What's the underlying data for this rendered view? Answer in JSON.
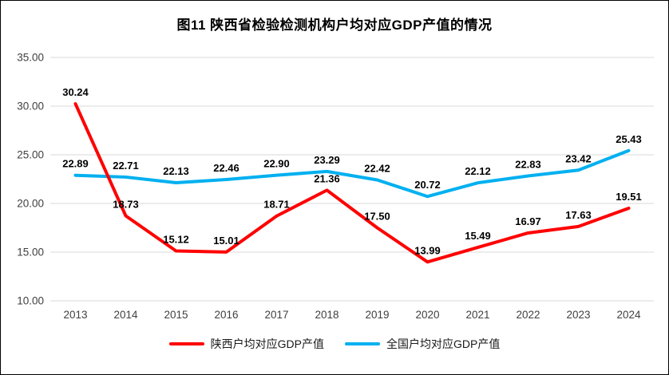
{
  "title": "图11  陕西省检验检测机构户均对应GDP产值的情况",
  "chart_data": {
    "type": "line",
    "title": "图11  陕西省检验检测机构户均对应GDP产值的情况",
    "categories": [
      "2013",
      "2014",
      "2015",
      "2016",
      "2017",
      "2018",
      "2019",
      "2020",
      "2021",
      "2022",
      "2023",
      "2024"
    ],
    "series": [
      {
        "name": "陕西户均对应GDP产值",
        "color": "#FF0000",
        "values": [
          30.24,
          18.73,
          15.12,
          15.01,
          18.71,
          21.36,
          17.5,
          13.99,
          15.49,
          16.97,
          17.63,
          19.51
        ]
      },
      {
        "name": "全国户均对应GDP产值",
        "color": "#00B0F0",
        "values": [
          22.89,
          22.71,
          22.13,
          22.46,
          22.9,
          23.29,
          22.42,
          20.72,
          22.12,
          22.83,
          23.42,
          25.43
        ]
      }
    ],
    "xlabel": "",
    "ylabel": "",
    "ylim": [
      10,
      35
    ],
    "yticks": [
      10,
      15,
      20,
      25,
      30,
      35
    ],
    "ytick_labels": [
      "10.00",
      "15.00",
      "20.00",
      "25.00",
      "30.00",
      "35.00"
    ],
    "grid": true,
    "legend_position": "bottom",
    "data_labels": true
  },
  "colors": {
    "grid": "#d9d9d9",
    "axis_text": "#404040",
    "data_label_text": "#000000",
    "background": "#ffffff",
    "border": "#000000"
  }
}
